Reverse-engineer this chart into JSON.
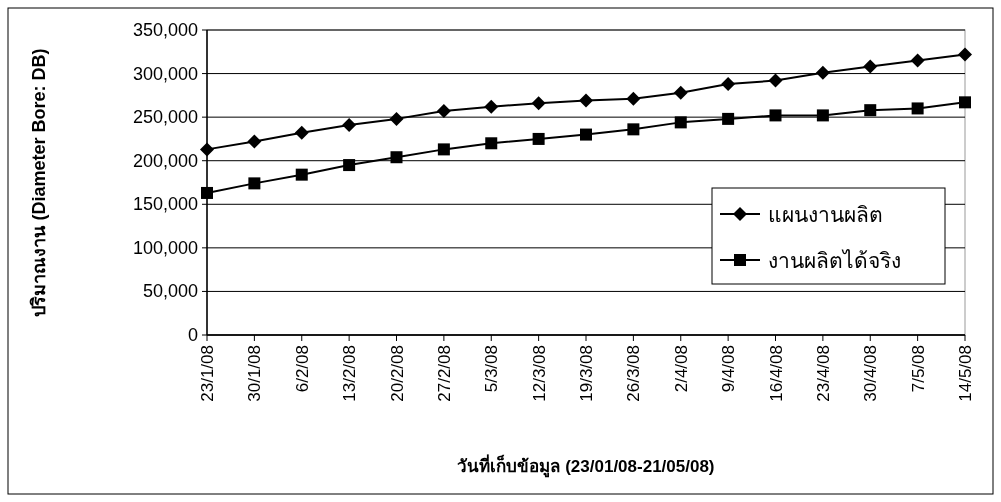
{
  "chart_data": {
    "type": "line",
    "xlabel": "วันที่เก็บข้อมูล (23/01/08-21/05/08)",
    "ylabel": "ปริมาณงาน (Diameter Bore: DB)",
    "categories": [
      "23/1/08",
      "30/1/08",
      "6/2/08",
      "13/2/08",
      "20/2/08",
      "27/2/08",
      "5/3/08",
      "12/3/08",
      "19/3/08",
      "26/3/08",
      "2/4/08",
      "9/4/08",
      "16/4/08",
      "23/4/08",
      "30/4/08",
      "7/5/08",
      "14/5/08"
    ],
    "series": [
      {
        "name": "แผนงานผลิต",
        "color": "#000000",
        "marker": "diamond",
        "values": [
          213000,
          222000,
          232000,
          241000,
          248000,
          257000,
          262000,
          266000,
          269000,
          271000,
          278000,
          288000,
          292000,
          301000,
          308000,
          315000,
          322000
        ]
      },
      {
        "name": "งานผลิตได้จริง",
        "color": "#000000",
        "marker": "square",
        "values": [
          163000,
          174000,
          184000,
          195000,
          204000,
          213000,
          220000,
          225000,
          230000,
          236000,
          244000,
          248000,
          252000,
          252000,
          258000,
          260000,
          267000
        ]
      }
    ],
    "ylim": [
      0,
      350000
    ],
    "yticks": [
      {
        "value": 0,
        "label": "0"
      },
      {
        "value": 50000,
        "label": "50,000"
      },
      {
        "value": 100000,
        "label": "100,000"
      },
      {
        "value": 150000,
        "label": "150,000"
      },
      {
        "value": 200000,
        "label": "200,000"
      },
      {
        "value": 250000,
        "label": "250,000"
      },
      {
        "value": 300000,
        "label": "300,000"
      },
      {
        "value": 350000,
        "label": "350,000"
      }
    ],
    "grid": "y",
    "legend": "right",
    "line_style": "solid"
  }
}
